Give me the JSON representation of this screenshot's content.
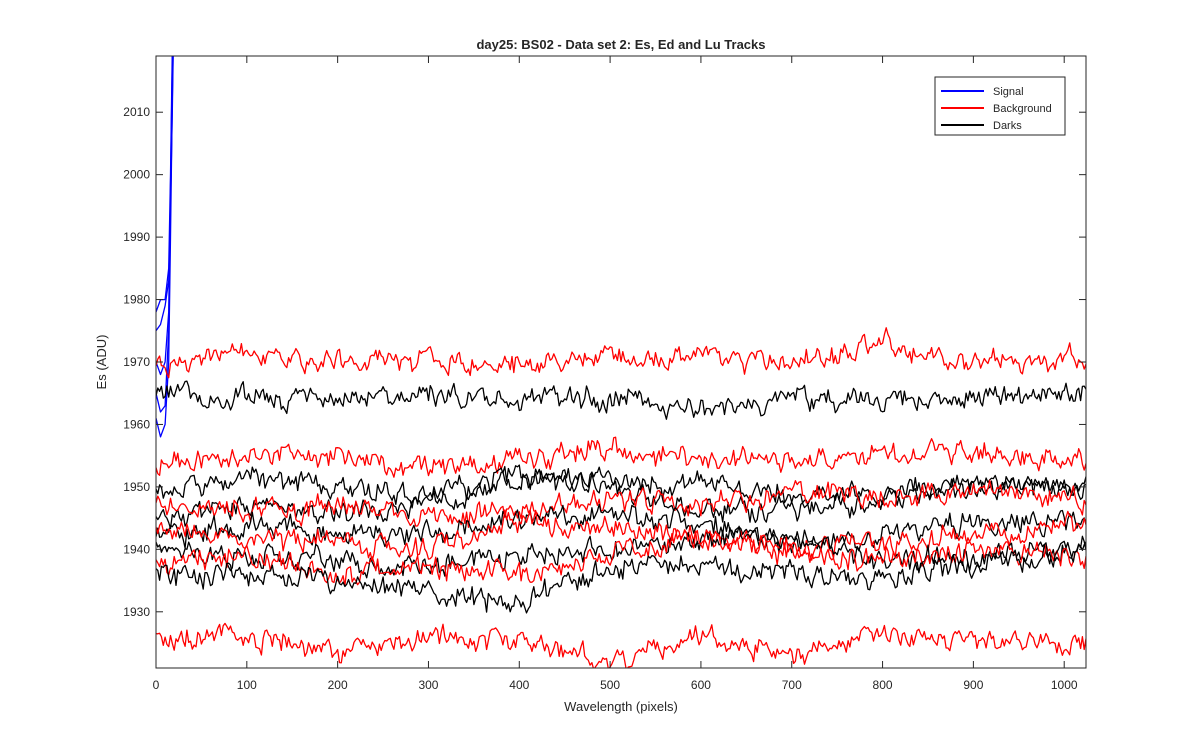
{
  "chart_data": {
    "type": "line",
    "title": "day25: BS02 - Data set 2: Es, Ed and Lu Tracks",
    "xlabel": "Wavelength (pixels)",
    "ylabel": "Es (ADU)",
    "xlim": [
      0,
      1024
    ],
    "ylim": [
      1921,
      2019
    ],
    "xticks": [
      0,
      100,
      200,
      300,
      400,
      500,
      600,
      700,
      800,
      900,
      1000
    ],
    "yticks": [
      1930,
      1940,
      1950,
      1960,
      1970,
      1980,
      1990,
      2000,
      2010
    ],
    "grid": false,
    "legend_position": "top-right",
    "colors": {
      "Signal": "#0000ff",
      "Background": "#ff0000",
      "Darks": "#000000"
    },
    "legend": [
      "Signal",
      "Background",
      "Darks"
    ],
    "series": [
      {
        "name": "Signal",
        "group": "Signal",
        "x": [
          0,
          5,
          10,
          14,
          16,
          18,
          20
        ],
        "y": [
          1975,
          1976,
          1979,
          1983,
          1995,
          2010,
          2030
        ]
      },
      {
        "name": "Signal",
        "group": "Signal",
        "x": [
          0,
          5,
          10,
          14,
          16,
          18,
          20
        ],
        "y": [
          1978,
          1980,
          1980,
          1985,
          2000,
          2020,
          2035
        ]
      },
      {
        "name": "Signal",
        "group": "Signal",
        "x": [
          0,
          5,
          10,
          14,
          16,
          18,
          20
        ],
        "y": [
          1965,
          1962,
          1963,
          1975,
          1995,
          2015,
          2030
        ]
      },
      {
        "name": "Signal",
        "group": "Signal",
        "x": [
          0,
          5,
          10,
          14,
          16,
          18,
          20
        ],
        "y": [
          1961,
          1958,
          1960,
          1970,
          1990,
          2012,
          2030
        ]
      },
      {
        "name": "Signal",
        "group": "Signal",
        "x": [
          0,
          5,
          10,
          14,
          16,
          18,
          20
        ],
        "y": [
          1970,
          1968,
          1970,
          1978,
          1998,
          2018,
          2032
        ]
      },
      {
        "name": "Background",
        "group": "Background",
        "x": [
          0,
          100,
          200,
          300,
          400,
          500,
          600,
          700,
          800,
          900,
          1024
        ],
        "y": [
          1970,
          1971,
          1970,
          1970,
          1969,
          1971,
          1971,
          1970,
          1973,
          1970,
          1970
        ]
      },
      {
        "name": "Darks",
        "group": "Darks",
        "x": [
          0,
          100,
          200,
          300,
          400,
          500,
          600,
          700,
          800,
          900,
          1024
        ],
        "y": [
          1966,
          1964,
          1964,
          1965,
          1964,
          1964,
          1962,
          1964,
          1964,
          1964,
          1965
        ]
      },
      {
        "name": "Background",
        "group": "Background",
        "x": [
          0,
          100,
          200,
          300,
          400,
          500,
          600,
          700,
          800,
          900,
          1024
        ],
        "y": [
          1954,
          1955,
          1955,
          1953,
          1954,
          1956,
          1955,
          1954,
          1955,
          1956,
          1954
        ]
      },
      {
        "name": "Darks",
        "group": "Darks",
        "x": [
          0,
          100,
          200,
          300,
          400,
          500,
          600,
          700,
          800,
          900,
          1024
        ],
        "y": [
          1950,
          1951,
          1950,
          1949,
          1951,
          1951,
          1950,
          1949,
          1949,
          1950,
          1950
        ]
      },
      {
        "name": "Darks",
        "group": "Darks",
        "x": [
          0,
          100,
          200,
          300,
          400,
          500,
          600,
          700,
          800,
          900,
          1024
        ],
        "y": [
          1945,
          1947,
          1946,
          1947,
          1952,
          1950,
          1946,
          1947,
          1948,
          1950,
          1950
        ]
      },
      {
        "name": "Background",
        "group": "Background",
        "x": [
          0,
          100,
          200,
          300,
          400,
          500,
          600,
          700,
          800,
          900,
          1024
        ],
        "y": [
          1948,
          1946,
          1947,
          1945,
          1946,
          1948,
          1947,
          1949,
          1948,
          1950,
          1948
        ]
      },
      {
        "name": "Darks",
        "group": "Darks",
        "x": [
          0,
          100,
          200,
          300,
          400,
          500,
          600,
          700,
          800,
          900,
          1024
        ],
        "y": [
          1942,
          1944,
          1943,
          1942,
          1945,
          1946,
          1944,
          1941,
          1942,
          1944,
          1945
        ]
      },
      {
        "name": "Background",
        "group": "Background",
        "x": [
          0,
          100,
          200,
          300,
          400,
          500,
          600,
          700,
          800,
          900,
          1024
        ],
        "y": [
          1943,
          1942,
          1941,
          1940,
          1945,
          1943,
          1942,
          1940,
          1941,
          1942,
          1944
        ]
      },
      {
        "name": "Darks",
        "group": "Darks",
        "x": [
          0,
          100,
          200,
          300,
          400,
          500,
          600,
          700,
          800,
          900,
          1024
        ],
        "y": [
          1940,
          1939,
          1938,
          1937,
          1939,
          1940,
          1941,
          1942,
          1938,
          1939,
          1940
        ]
      },
      {
        "name": "Background",
        "group": "Background",
        "x": [
          0,
          100,
          200,
          300,
          400,
          500,
          600,
          700,
          800,
          900,
          1024
        ],
        "y": [
          1938,
          1939,
          1936,
          1937,
          1936,
          1939,
          1942,
          1939,
          1938,
          1940,
          1939
        ]
      },
      {
        "name": "Darks",
        "group": "Darks",
        "x": [
          0,
          100,
          200,
          300,
          400,
          500,
          600,
          700,
          800,
          900,
          1024
        ],
        "y": [
          1936,
          1936,
          1935,
          1933,
          1932,
          1937,
          1938,
          1936,
          1935,
          1937,
          1940
        ]
      },
      {
        "name": "Background",
        "group": "Background",
        "x": [
          0,
          100,
          200,
          300,
          400,
          500,
          600,
          700,
          800,
          900,
          1024
        ],
        "y": [
          1925,
          1926,
          1924,
          1926,
          1925,
          1922,
          1926,
          1923,
          1926,
          1925,
          1925
        ]
      }
    ]
  }
}
